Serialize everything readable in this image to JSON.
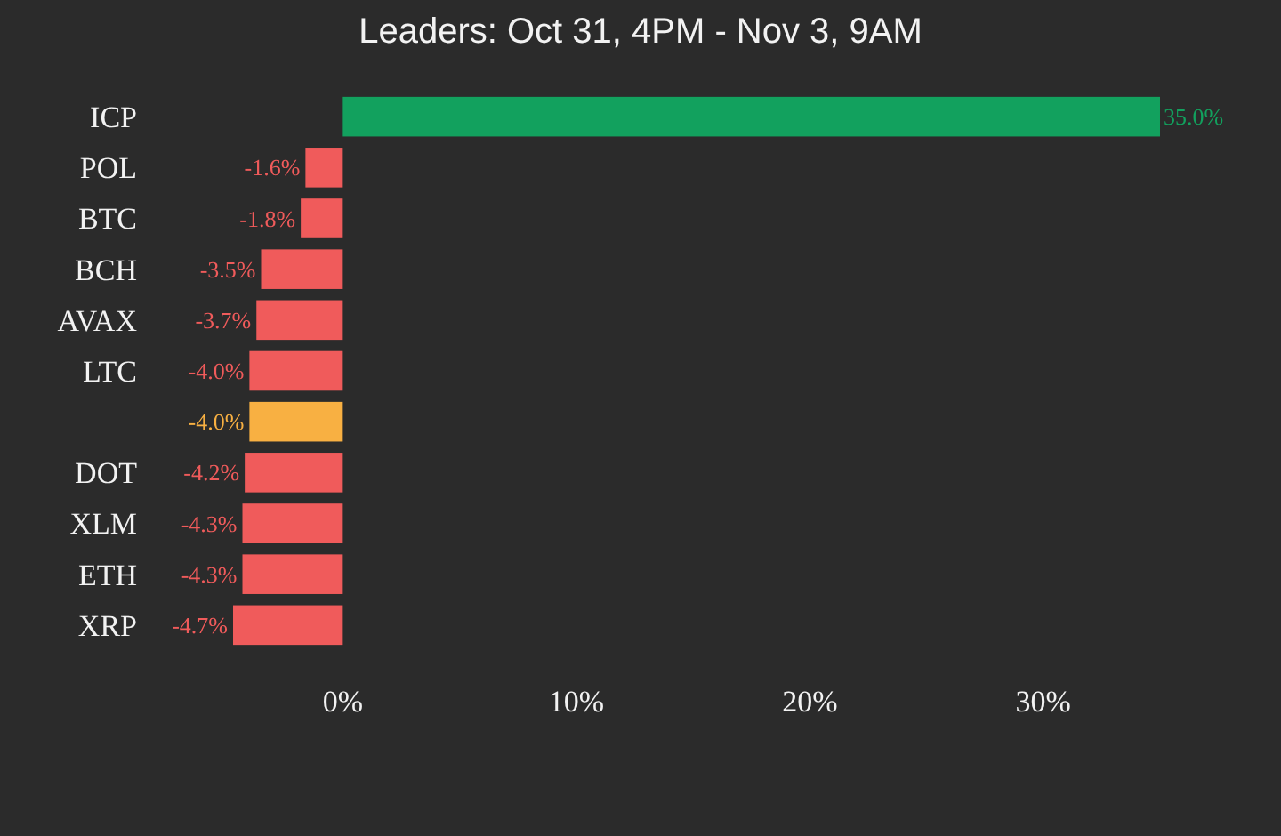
{
  "chart_data": {
    "type": "bar",
    "orientation": "horizontal",
    "title": "Leaders: Oct 31, 4PM - Nov 3, 9AM",
    "categories": [
      "ICP",
      "POL",
      "BTC",
      "BCH",
      "AVAX",
      "LTC",
      null,
      "DOT",
      "XLM",
      "ETH",
      "XRP"
    ],
    "values": [
      35.0,
      -1.6,
      -1.8,
      -3.5,
      -3.7,
      -4.0,
      -4.0,
      -4.2,
      -4.3,
      -4.3,
      -4.7
    ],
    "colors": [
      "#12a15e",
      "#f05b5b",
      "#f05b5b",
      "#f05b5b",
      "#f05b5b",
      "#f05b5b",
      "#f8b042",
      "#f05b5b",
      "#f05b5b",
      "#f05b5b",
      "#f05b5b"
    ],
    "value_labels": [
      "35.0%",
      "-1.6%",
      "-1.8%",
      "-3.5%",
      "-3.7%",
      "-4.0%",
      "-4.0%",
      "-4.2%",
      "-4.3%",
      "-4.3%",
      "-4.7%"
    ],
    "xlim": [
      -4.7,
      35
    ],
    "xticks": [
      {
        "value": 0,
        "label": "0%"
      },
      {
        "value": 10,
        "label": "10%"
      },
      {
        "value": 20,
        "label": "20%"
      },
      {
        "value": 30,
        "label": "30%"
      }
    ],
    "grid": false
  }
}
